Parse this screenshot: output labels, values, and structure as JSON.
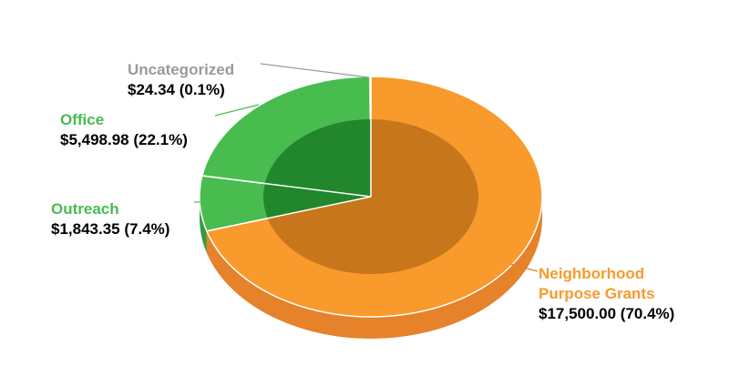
{
  "chart_data": {
    "type": "pie",
    "categories": [
      "Neighborhood Purpose Grants",
      "Outreach",
      "Office",
      "Uncategorized"
    ],
    "values": [
      17500.0,
      1843.35,
      5498.98,
      24.34
    ],
    "percents": [
      70.4,
      7.4,
      22.1,
      0.1
    ],
    "labels": [
      {
        "name": "Neighborhood Purpose Grants",
        "name_lines": [
          "Neighborhood",
          "Purpose Grants"
        ],
        "value_text": "$17,500.00 (70.4%)",
        "color": "#F89A2C"
      },
      {
        "name": "Outreach",
        "name_lines": [
          "Outreach"
        ],
        "value_text": "$1,843.35 (7.4%)",
        "color": "#48BC4F"
      },
      {
        "name": "Office",
        "name_lines": [
          "Office"
        ],
        "value_text": "$5,498.98 (22.1%)",
        "color": "#48BC4F"
      },
      {
        "name": "Uncategorized",
        "name_lines": [
          "Uncategorized"
        ],
        "value_text": "$24.34 (0.1%)",
        "color": "#9A9A9A"
      }
    ],
    "colors": {
      "grants_top": "#F89A2C",
      "grants_side": "#E5822A",
      "grants_inner": "#C8761C",
      "green_top": "#48BC4F",
      "green_side": "#3A9A40",
      "green_inner": "#22862C",
      "uncat": "#B9B9B9",
      "leader": "#9A9A9A",
      "leader_green": "#48BC4F"
    },
    "title": "",
    "style": "3d-donut"
  }
}
